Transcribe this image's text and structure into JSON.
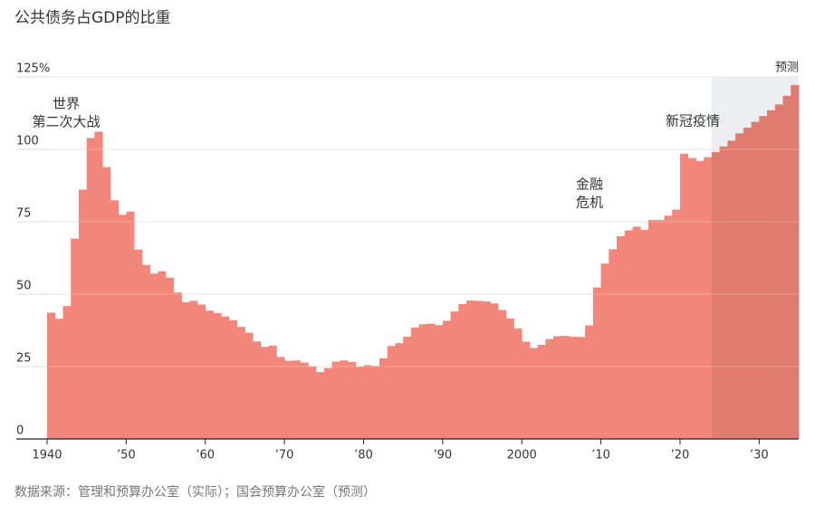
{
  "chart_data": {
    "type": "bar",
    "title": "公共债务占GDP的比重",
    "x": [
      1940,
      1941,
      1942,
      1943,
      1944,
      1945,
      1946,
      1947,
      1948,
      1949,
      1950,
      1951,
      1952,
      1953,
      1954,
      1955,
      1956,
      1957,
      1958,
      1959,
      1960,
      1961,
      1962,
      1963,
      1964,
      1965,
      1966,
      1967,
      1968,
      1969,
      1970,
      1971,
      1972,
      1973,
      1974,
      1975,
      1976,
      1977,
      1978,
      1979,
      1980,
      1981,
      1982,
      1983,
      1984,
      1985,
      1986,
      1987,
      1988,
      1989,
      1990,
      1991,
      1992,
      1993,
      1994,
      1995,
      1996,
      1997,
      1998,
      1999,
      2000,
      2001,
      2002,
      2003,
      2004,
      2005,
      2006,
      2007,
      2008,
      2009,
      2010,
      2011,
      2012,
      2013,
      2014,
      2015,
      2016,
      2017,
      2018,
      2019,
      2020,
      2021,
      2022,
      2023,
      2024,
      2025,
      2026,
      2027,
      2028,
      2029,
      2030,
      2031,
      2032,
      2033,
      2034
    ],
    "values": [
      43.6,
      41.5,
      45.9,
      69.2,
      86.1,
      103.9,
      106.1,
      93.9,
      82.4,
      77.4,
      78.5,
      65.4,
      60.1,
      57.1,
      57.9,
      55.7,
      50.6,
      47.2,
      47.7,
      46.4,
      44.3,
      43.5,
      42.3,
      41.0,
      38.7,
      36.7,
      33.7,
      31.8,
      32.2,
      28.3,
      27.0,
      27.1,
      26.4,
      25.1,
      23.1,
      24.5,
      26.7,
      27.1,
      26.6,
      24.9,
      25.5,
      25.2,
      27.9,
      32.1,
      33.1,
      35.3,
      38.5,
      39.6,
      39.8,
      39.3,
      40.8,
      44.0,
      46.6,
      47.8,
      47.7,
      47.5,
      46.8,
      44.5,
      41.6,
      38.2,
      33.6,
      31.4,
      32.5,
      34.5,
      35.5,
      35.6,
      35.3,
      35.2,
      39.2,
      52.3,
      60.6,
      65.5,
      70.0,
      72.0,
      73.3,
      72.2,
      75.6,
      75.6,
      77.1,
      79.2,
      98.5,
      97.0,
      96.0,
      97.3,
      99.0,
      101.0,
      103.0,
      105.5,
      107.5,
      109.5,
      111.5,
      113.5,
      115.5,
      118.5,
      122.2
    ],
    "color": "#f2867a",
    "projection_color": "#e07b6f",
    "projection_start": 2024,
    "projection_label": "预测",
    "projection_shade": "#eceef1",
    "xlim": [
      1940,
      2035
    ],
    "ylim": [
      0,
      125
    ],
    "xticks": [
      1940,
      {
        "value": 1950,
        "label": "’50"
      },
      {
        "value": 1960,
        "label": "’60"
      },
      {
        "value": 1970,
        "label": "’70"
      },
      {
        "value": 1980,
        "label": "’80"
      },
      {
        "value": 1990,
        "label": "’90"
      },
      2000,
      {
        "value": 2010,
        "label": "’10"
      },
      {
        "value": 2020,
        "label": "’20"
      },
      {
        "value": 2030,
        "label": "’30"
      }
    ],
    "yticks": [
      0,
      25,
      50,
      75,
      100,
      {
        "value": 125,
        "label": "125%"
      }
    ],
    "grid": true,
    "annotations": [
      [
        "世界",
        "第二次大战"
      ],
      [
        "金融",
        "危机"
      ],
      [
        "新冠疫情"
      ]
    ],
    "source": "数据来源：管理和预算办公室（实际）；国会预算办公室（预测）"
  }
}
